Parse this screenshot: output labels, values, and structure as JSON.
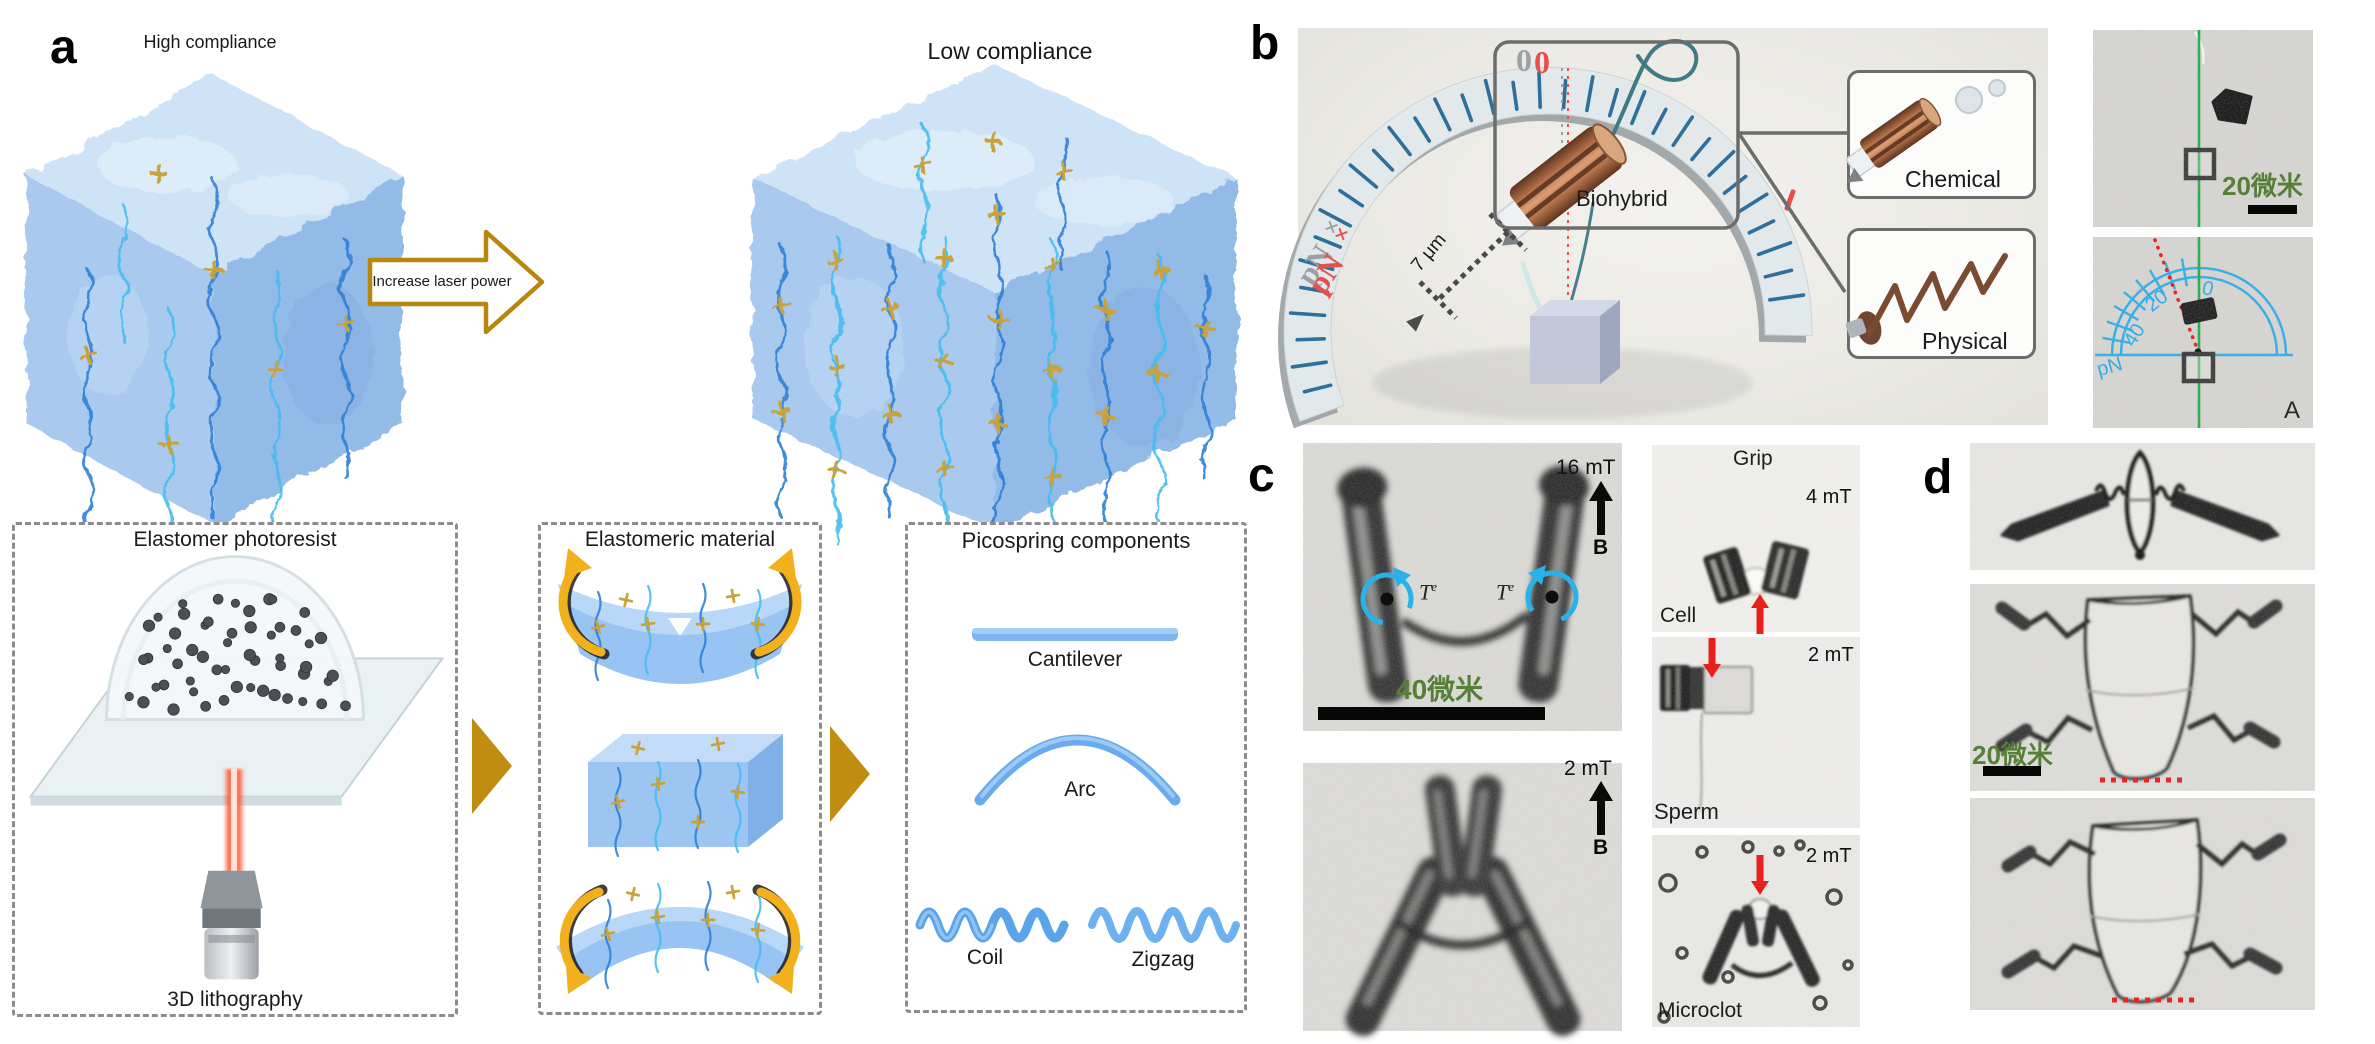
{
  "colors": {
    "gold_arrow": "#c08d10",
    "yellow_curved_arrow": "#f2b11c",
    "scale_text_green": "#55803a",
    "green_line": "#27ae45",
    "cyan_annotation": "#2aaee8",
    "red_annotation": "#e8211d",
    "gauge_salmon": "#e4504b",
    "gauge_tick_blue": "#2e6f9c"
  },
  "panel_a": {
    "label": "a",
    "high_title": "High compliance",
    "low_title": "Low compliance",
    "arrow_label": "Increase laser power",
    "box1_title": "Elastomer photoresist",
    "box1_caption": "3D lithography",
    "box2_title": "Elastomeric material",
    "box3_title": "Picospring components",
    "comp_cantilever": "Cantilever",
    "comp_arc": "Arc",
    "comp_coil": "Coil",
    "comp_zigzag": "Zigzag"
  },
  "panel_b": {
    "label": "b",
    "gauge_zero": "0",
    "gauge_unit": "pN",
    "gauge_plus": "+",
    "biohybrid": "Biohybrid",
    "deflection": "7 μm",
    "inset_chemical": "Chemical",
    "inset_physical": "Physical",
    "scale_label": "20微米",
    "protractor": {
      "p0": "0",
      "p20": "20",
      "p40": "40",
      "unit": "pN",
      "frame": "A"
    }
  },
  "panel_c": {
    "label": "c",
    "top_field": "16 mT",
    "field_b": "B",
    "torque_t": "T",
    "torque_e": "e",
    "scale_label": "40微米",
    "bottom_field": "2 mT",
    "grip_title": "Grip",
    "grip_field": "4 mT",
    "grip_caption": "Cell",
    "sperm_field": "2 mT",
    "sperm_caption": "Sperm",
    "clot_field": "2 mT",
    "clot_caption": "Microclot"
  },
  "panel_d": {
    "label": "d",
    "scale_label": "20微米"
  }
}
